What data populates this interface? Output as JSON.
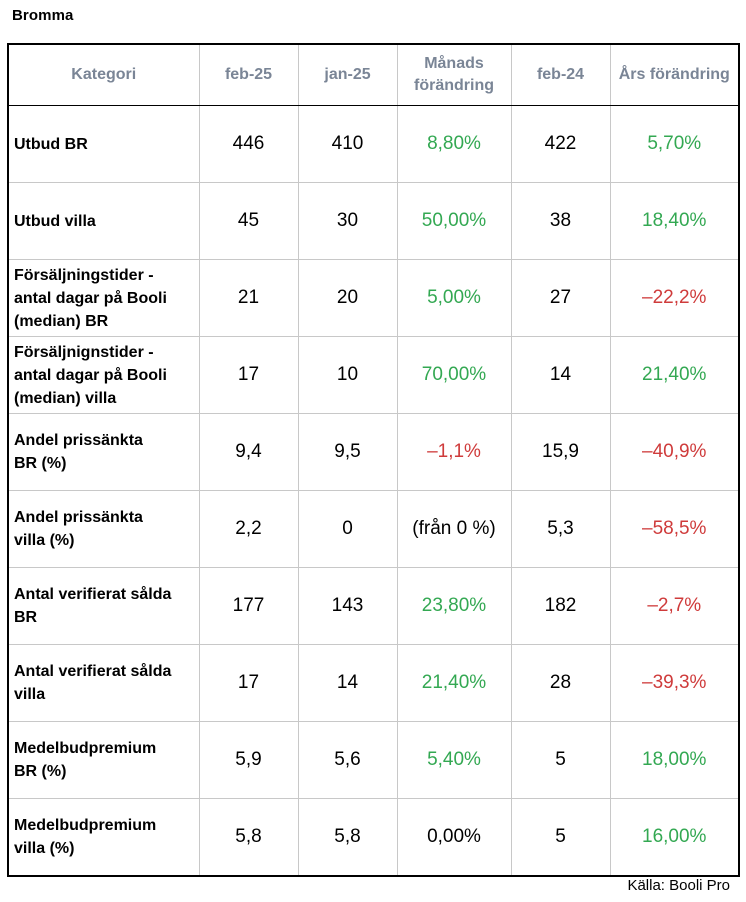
{
  "title": "Bromma",
  "source": "Källa: Booli Pro",
  "colors": {
    "positive": "#33a852",
    "negative": "#cf3b3b",
    "neutral": "#000000",
    "header_text": "#7a8596"
  },
  "headers": [
    "Kategori",
    "feb-25",
    "jan-25",
    "Månads\nförändring",
    "feb-24",
    "Års förändring"
  ],
  "rows": [
    {
      "label": "Utbud BR",
      "feb25": "446",
      "jan25": "410",
      "monthly": "8,80%",
      "monthly_trend": "pos",
      "feb24": "422",
      "yearly": "5,70%",
      "yearly_trend": "pos"
    },
    {
      "label": "Utbud villa",
      "feb25": "45",
      "jan25": "30",
      "monthly": "50,00%",
      "monthly_trend": "pos",
      "feb24": "38",
      "yearly": "18,40%",
      "yearly_trend": "pos"
    },
    {
      "label": "Försäljningstider -\nantal dagar på Booli\n(median) BR",
      "feb25": "21",
      "jan25": "20",
      "monthly": "5,00%",
      "monthly_trend": "pos",
      "feb24": "27",
      "yearly": "–22,2%",
      "yearly_trend": "neg"
    },
    {
      "label": "Försäljnignstider -\nantal dagar på Booli\n(median) villa",
      "feb25": "17",
      "jan25": "10",
      "monthly": "70,00%",
      "monthly_trend": "pos",
      "feb24": "14",
      "yearly": "21,40%",
      "yearly_trend": "pos"
    },
    {
      "label": "Andel prissänkta\nBR (%)",
      "feb25": "9,4",
      "jan25": "9,5",
      "monthly": "–1,1%",
      "monthly_trend": "neg",
      "feb24": "15,9",
      "yearly": "–40,9%",
      "yearly_trend": "neg"
    },
    {
      "label": "Andel prissänkta\nvilla (%)",
      "feb25": "2,2",
      "jan25": "0",
      "monthly": "(från 0 %)",
      "monthly_trend": "neu",
      "feb24": "5,3",
      "yearly": "–58,5%",
      "yearly_trend": "neg"
    },
    {
      "label": "Antal verifierat sålda\nBR",
      "feb25": "177",
      "jan25": "143",
      "monthly": "23,80%",
      "monthly_trend": "pos",
      "feb24": "182",
      "yearly": "–2,7%",
      "yearly_trend": "neg"
    },
    {
      "label": "Antal verifierat sålda\nvilla",
      "feb25": "17",
      "jan25": "14",
      "monthly": "21,40%",
      "monthly_trend": "pos",
      "feb24": "28",
      "yearly": "–39,3%",
      "yearly_trend": "neg"
    },
    {
      "label": "Medelbudpremium\nBR (%)",
      "feb25": "5,9",
      "jan25": "5,6",
      "monthly": "5,40%",
      "monthly_trend": "pos",
      "feb24": "5",
      "yearly": "18,00%",
      "yearly_trend": "pos"
    },
    {
      "label": "Medelbudpremium\nvilla (%)",
      "feb25": "5,8",
      "jan25": "5,8",
      "monthly": "0,00%",
      "monthly_trend": "neu",
      "feb24": "5",
      "yearly": "16,00%",
      "yearly_trend": "pos"
    }
  ]
}
